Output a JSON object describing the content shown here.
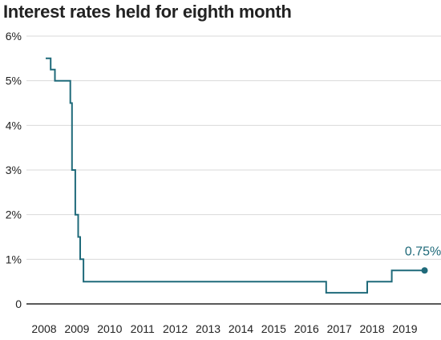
{
  "chart_data": {
    "type": "line",
    "title": "Interest rates held for eighth month",
    "xlabel": "",
    "ylabel": "",
    "xlim": [
      2008,
      2020.1
    ],
    "ylim": [
      0,
      6
    ],
    "x_ticks": [
      "2008",
      "2009",
      "2010",
      "2011",
      "2012",
      "2013",
      "2014",
      "2015",
      "2016",
      "2017",
      "2018",
      "2019"
    ],
    "y_ticks": [
      "0",
      "1%",
      "2%",
      "3%",
      "4%",
      "5%",
      "6%"
    ],
    "grid": "horizontal",
    "step": true,
    "colors": {
      "line": "#1f6a7a",
      "annotation": "#1f6a7a",
      "grid": "#d9d9d9",
      "axis": "#222222"
    },
    "series": [
      {
        "points": [
          [
            2008.05,
            5.5
          ],
          [
            2008.2,
            5.25
          ],
          [
            2008.33,
            5.0
          ],
          [
            2008.8,
            4.5
          ],
          [
            2008.85,
            3.0
          ],
          [
            2008.95,
            2.0
          ],
          [
            2009.04,
            1.5
          ],
          [
            2009.1,
            1.0
          ],
          [
            2009.2,
            0.5
          ],
          [
            2016.6,
            0.25
          ],
          [
            2017.85,
            0.5
          ],
          [
            2018.6,
            0.75
          ],
          [
            2019.6,
            0.75
          ]
        ]
      }
    ],
    "annotation": {
      "text": "0.75%",
      "x": 2019.6,
      "y": 0.75
    }
  }
}
